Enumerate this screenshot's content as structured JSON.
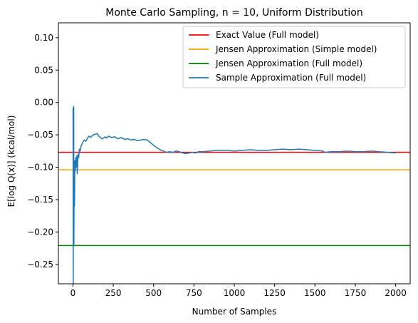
{
  "chart_data": {
    "type": "line",
    "title": "Monte Carlo Sampling, n = 10, Uniform Distribution",
    "xlabel": "Number of Samples",
    "ylabel": "E[log Q(x)] (kcal/mol)",
    "xlim": [
      -90,
      2090
    ],
    "ylim": [
      -0.28,
      0.123
    ],
    "x_ticks": [
      0,
      250,
      500,
      750,
      1000,
      1250,
      1500,
      1750,
      2000
    ],
    "x_tick_labels": [
      "0",
      "250",
      "500",
      "750",
      "1000",
      "1250",
      "1500",
      "1750",
      "2000"
    ],
    "y_ticks": [
      0.1,
      0.05,
      0.0,
      -0.05,
      -0.1,
      -0.15,
      -0.2,
      -0.25
    ],
    "y_tick_labels": [
      "0.10",
      "0.05",
      "0.00",
      "−0.05",
      "−0.10",
      "−0.15",
      "−0.20",
      "−0.25"
    ],
    "grid": false,
    "legend_position": "top-right",
    "hlines": [
      {
        "name": "Exact Value (Full model)",
        "y": -0.077,
        "color": "#ff0000"
      },
      {
        "name": "Jensen Approximation (Simple model)",
        "y": -0.104,
        "color": "#ffa500"
      },
      {
        "name": "Jensen Approximation (Full model)",
        "y": -0.221,
        "color": "#008000"
      }
    ],
    "series": [
      {
        "name": "Sample Approximation (Full model)",
        "color": "#1f77b4",
        "x": [
          1,
          2,
          3,
          4,
          5,
          6,
          8,
          10,
          12,
          15,
          18,
          20,
          22,
          25,
          27,
          30,
          33,
          36,
          40,
          45,
          50,
          60,
          70,
          80,
          90,
          100,
          110,
          125,
          140,
          150,
          160,
          170,
          180,
          190,
          200,
          210,
          220,
          240,
          260,
          280,
          300,
          320,
          340,
          360,
          380,
          400,
          420,
          440,
          460,
          480,
          500,
          520,
          540,
          560,
          580,
          600,
          620,
          640,
          660,
          680,
          700,
          720,
          740,
          760,
          780,
          800,
          850,
          900,
          950,
          1000,
          1050,
          1100,
          1150,
          1200,
          1250,
          1300,
          1350,
          1400,
          1450,
          1500,
          1550,
          1560,
          1600,
          1650,
          1700,
          1750,
          1800,
          1850,
          1900,
          1950,
          2000
        ],
        "y": [
          -0.008,
          -0.28,
          -0.13,
          -0.2,
          -0.006,
          -0.22,
          -0.1,
          -0.16,
          -0.09,
          -0.105,
          -0.085,
          -0.095,
          -0.1,
          -0.082,
          -0.11,
          -0.09,
          -0.08,
          -0.085,
          -0.072,
          -0.075,
          -0.068,
          -0.062,
          -0.058,
          -0.06,
          -0.055,
          -0.052,
          -0.054,
          -0.05,
          -0.049,
          -0.048,
          -0.052,
          -0.054,
          -0.056,
          -0.055,
          -0.053,
          -0.055,
          -0.052,
          -0.054,
          -0.053,
          -0.056,
          -0.054,
          -0.057,
          -0.056,
          -0.058,
          -0.057,
          -0.059,
          -0.058,
          -0.057,
          -0.058,
          -0.062,
          -0.066,
          -0.07,
          -0.073,
          -0.075,
          -0.077,
          -0.076,
          -0.077,
          -0.075,
          -0.076,
          -0.078,
          -0.079,
          -0.078,
          -0.077,
          -0.078,
          -0.076,
          -0.076,
          -0.075,
          -0.074,
          -0.074,
          -0.075,
          -0.074,
          -0.073,
          -0.074,
          -0.074,
          -0.073,
          -0.072,
          -0.073,
          -0.072,
          -0.073,
          -0.074,
          -0.075,
          -0.077,
          -0.076,
          -0.076,
          -0.075,
          -0.076,
          -0.076,
          -0.075,
          -0.076,
          -0.077,
          -0.078
        ]
      }
    ]
  }
}
